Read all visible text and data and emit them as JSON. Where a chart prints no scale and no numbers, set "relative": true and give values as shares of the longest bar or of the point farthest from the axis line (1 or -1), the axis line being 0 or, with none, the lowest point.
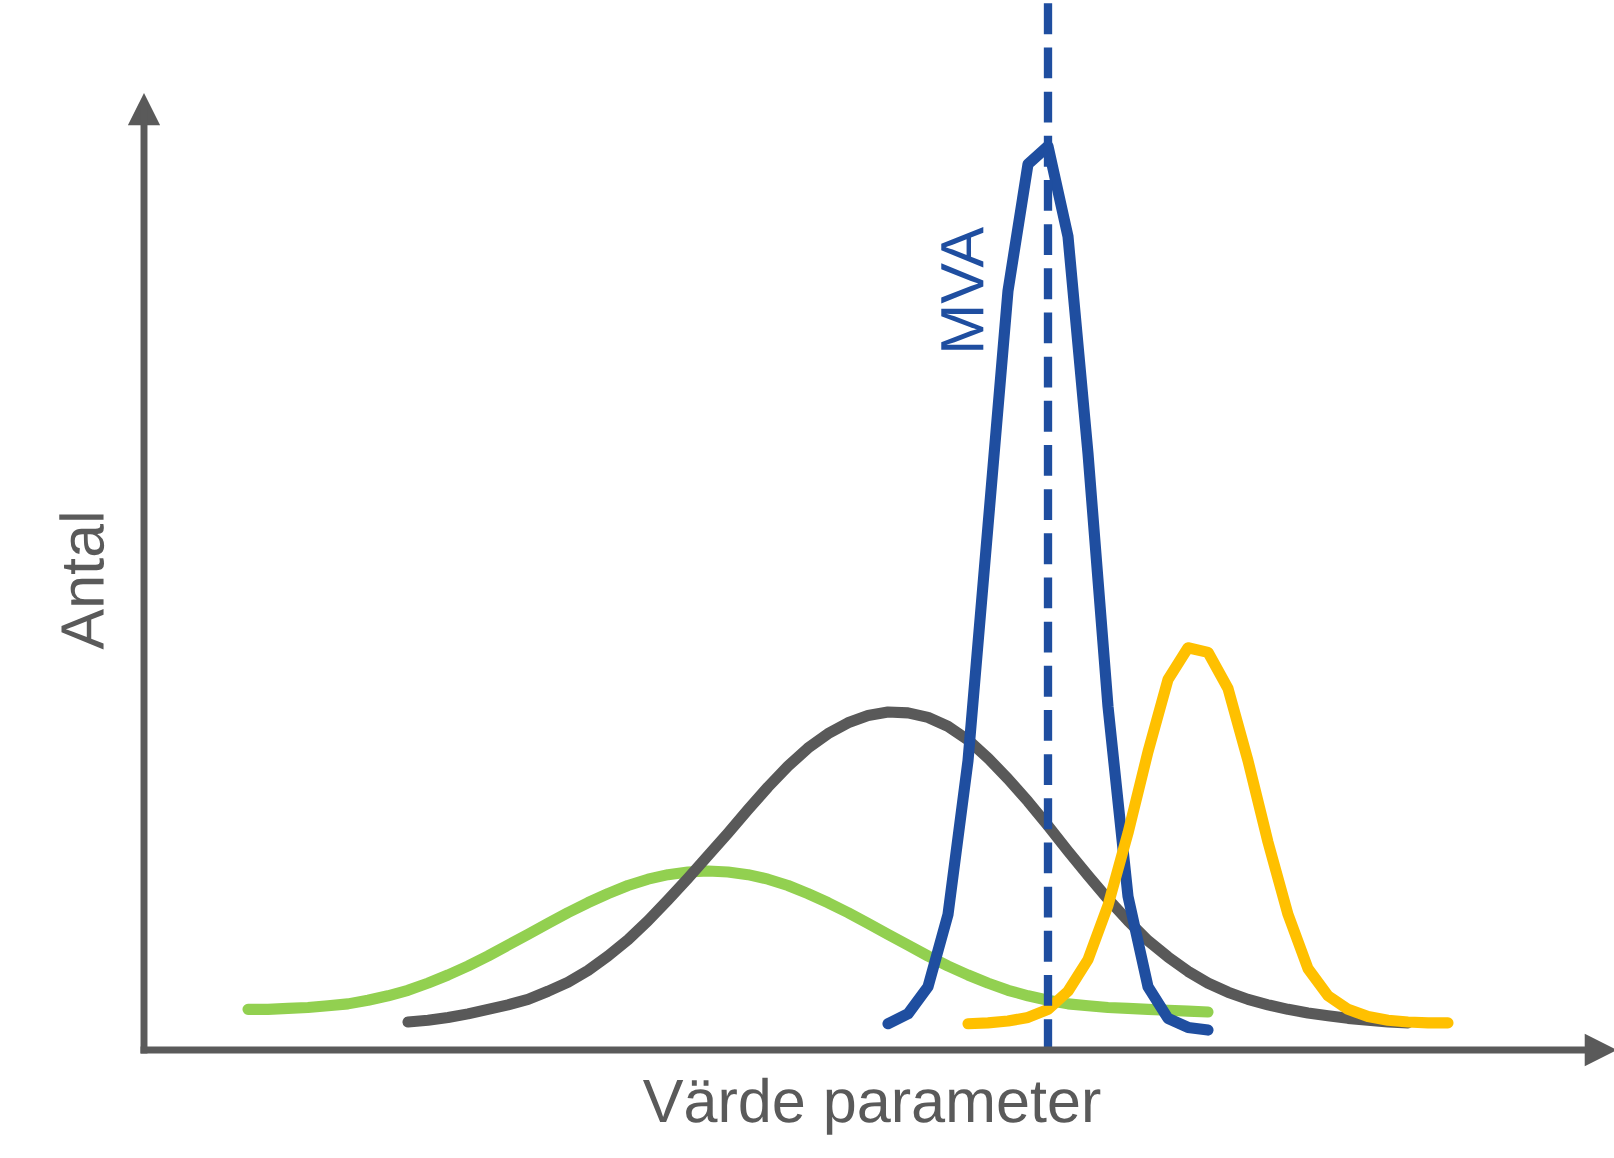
{
  "chart_data": {
    "type": "line",
    "relative": true,
    "xlabel": "Värde parameter",
    "ylabel": "Antal",
    "legend": false,
    "grid": false,
    "tick_labels": false,
    "marker": "none",
    "line_style": "solid",
    "categories": [
      null,
      null,
      null,
      null,
      null,
      null,
      null,
      null,
      null,
      null,
      null,
      null,
      null,
      null,
      null,
      null,
      null,
      null,
      null,
      null,
      null,
      null,
      null,
      null,
      null,
      null,
      null,
      null,
      null,
      null,
      null,
      null,
      null,
      null,
      null,
      null,
      null,
      null,
      null,
      null,
      null,
      null,
      null,
      null,
      null,
      null,
      null,
      null,
      null,
      null,
      null,
      null,
      null,
      null,
      null,
      null,
      null,
      null,
      null,
      null,
      null,
      null,
      null,
      null,
      null,
      null,
      null,
      null,
      null,
      null,
      null,
      null
    ],
    "series": [
      {
        "color": "#92d050",
        "values": [
          null,
          null,
          null,
          null,
          null,
          0.045,
          0.045,
          0.046,
          0.047,
          0.049,
          0.051,
          0.055,
          0.06,
          0.066,
          0.074,
          0.083,
          0.093,
          0.104,
          0.116,
          0.128,
          0.14,
          0.152,
          0.163,
          0.173,
          0.182,
          0.189,
          0.194,
          0.197,
          0.198,
          0.197,
          0.194,
          0.189,
          0.182,
          0.173,
          0.163,
          0.152,
          0.14,
          0.128,
          0.116,
          0.104,
          0.093,
          0.083,
          0.074,
          0.066,
          0.06,
          0.055,
          0.051,
          0.049,
          0.047,
          0.046,
          0.045,
          0.044,
          0.043,
          0.042,
          null,
          null,
          null,
          null,
          null,
          null,
          null,
          null,
          null,
          null,
          null,
          null,
          null,
          null,
          null,
          null,
          null,
          null
        ]
      },
      {
        "color": "#595959",
        "values": [
          null,
          null,
          null,
          null,
          null,
          null,
          null,
          null,
          null,
          null,
          null,
          null,
          null,
          0.031,
          0.033,
          0.036,
          0.04,
          0.045,
          0.05,
          0.056,
          0.065,
          0.075,
          0.088,
          0.104,
          0.122,
          0.143,
          0.166,
          0.19,
          0.215,
          0.24,
          0.266,
          0.291,
          0.314,
          0.334,
          0.35,
          0.362,
          0.37,
          0.374,
          0.373,
          0.368,
          0.358,
          0.343,
          0.323,
          0.3,
          0.275,
          0.248,
          0.22,
          0.193,
          0.167,
          0.143,
          0.121,
          0.103,
          0.087,
          0.074,
          0.064,
          0.056,
          0.05,
          0.045,
          0.041,
          0.038,
          0.035,
          0.033,
          0.031,
          0.03,
          null,
          null,
          null,
          null,
          null,
          null,
          null,
          null
        ]
      },
      {
        "color": "#1f4ea0",
        "values": [
          null,
          null,
          null,
          null,
          null,
          null,
          null,
          null,
          null,
          null,
          null,
          null,
          null,
          null,
          null,
          null,
          null,
          null,
          null,
          null,
          null,
          null,
          null,
          null,
          null,
          null,
          null,
          null,
          null,
          null,
          null,
          null,
          null,
          null,
          null,
          null,
          null,
          0.029,
          0.04,
          0.07,
          0.15,
          0.32,
          0.58,
          0.84,
          0.98,
          1.0,
          0.9,
          0.66,
          0.38,
          0.17,
          0.07,
          0.035,
          0.025,
          0.022,
          null,
          null,
          null,
          null,
          null,
          null,
          null,
          null,
          null,
          null,
          null,
          null,
          null,
          null,
          null,
          null,
          null,
          null
        ]
      },
      {
        "color": "#ffc000",
        "values": [
          null,
          null,
          null,
          null,
          null,
          null,
          null,
          null,
          null,
          null,
          null,
          null,
          null,
          null,
          null,
          null,
          null,
          null,
          null,
          null,
          null,
          null,
          null,
          null,
          null,
          null,
          null,
          null,
          null,
          null,
          null,
          null,
          null,
          null,
          null,
          null,
          null,
          null,
          null,
          null,
          null,
          0.029,
          0.03,
          0.032,
          0.036,
          0.045,
          0.065,
          0.1,
          0.16,
          0.24,
          0.33,
          0.41,
          0.445,
          0.44,
          0.4,
          0.32,
          0.23,
          0.15,
          0.09,
          0.06,
          0.045,
          0.037,
          0.033,
          0.031,
          0.03,
          0.03,
          null,
          null,
          null,
          null,
          null,
          null
        ]
      }
    ],
    "annotations": [
      "MVA"
    ]
  }
}
